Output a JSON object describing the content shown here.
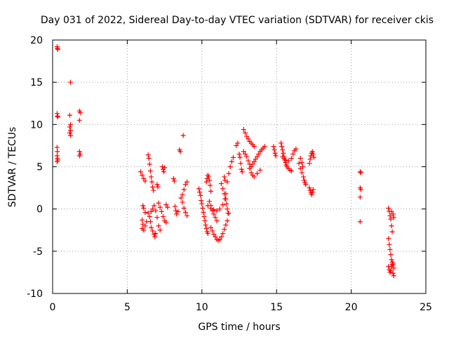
{
  "chart_data": {
    "type": "scatter",
    "title": "Day 031 of 2022, Sidereal Day-to-day VTEC variation (SDTVAR) for receiver ckis",
    "xlabel": "GPS time / hours",
    "ylabel": "SDTVAR / TECUs",
    "xlim": [
      0,
      25
    ],
    "ylim": [
      -10,
      20
    ],
    "xticks": [
      0,
      5,
      10,
      15,
      20,
      25
    ],
    "yticks": [
      -10,
      -5,
      0,
      5,
      10,
      15,
      20
    ],
    "xtick_labels": [
      "0",
      "5",
      "10",
      "15",
      "20",
      "25"
    ],
    "ytick_labels": [
      "-10",
      "-5",
      "0",
      "5",
      "10",
      "15",
      "20"
    ],
    "grid": true,
    "marker": "+",
    "color": "#ff0000",
    "series": [
      {
        "name": "SDTVAR",
        "points": [
          [
            0.3,
            19.2
          ],
          [
            0.32,
            19.0
          ],
          [
            0.35,
            18.9
          ],
          [
            0.3,
            11.3
          ],
          [
            0.32,
            11.0
          ],
          [
            0.35,
            10.9
          ],
          [
            0.3,
            7.3
          ],
          [
            0.32,
            6.8
          ],
          [
            0.3,
            6.3
          ],
          [
            0.32,
            6.0
          ],
          [
            0.35,
            5.8
          ],
          [
            0.3,
            5.6
          ],
          [
            1.2,
            15.0
          ],
          [
            1.15,
            11.1
          ],
          [
            1.2,
            10.0
          ],
          [
            1.15,
            9.7
          ],
          [
            1.2,
            9.3
          ],
          [
            1.15,
            9.0
          ],
          [
            1.2,
            8.7
          ],
          [
            1.8,
            11.6
          ],
          [
            1.85,
            11.4
          ],
          [
            1.8,
            10.5
          ],
          [
            1.8,
            6.8
          ],
          [
            1.85,
            6.5
          ],
          [
            1.8,
            6.3
          ],
          [
            5.9,
            4.4
          ],
          [
            6.0,
            4.0
          ],
          [
            6.1,
            3.6
          ],
          [
            6.2,
            3.3
          ],
          [
            6.05,
            0.4
          ],
          [
            6.1,
            0.1
          ],
          [
            6.2,
            -0.4
          ],
          [
            6.0,
            -1.3
          ],
          [
            6.05,
            -1.8
          ],
          [
            6.0,
            -2.3
          ],
          [
            6.1,
            -2.5
          ],
          [
            6.2,
            -2.0
          ],
          [
            6.3,
            -1.5
          ],
          [
            6.4,
            6.4
          ],
          [
            6.45,
            6.0
          ],
          [
            6.5,
            5.3
          ],
          [
            6.55,
            4.5
          ],
          [
            6.6,
            3.8
          ],
          [
            6.65,
            3.2
          ],
          [
            6.7,
            2.6
          ],
          [
            6.75,
            2.2
          ],
          [
            6.4,
            -0.5
          ],
          [
            6.5,
            -0.9
          ],
          [
            6.55,
            -1.5
          ],
          [
            6.6,
            -2.2
          ],
          [
            6.7,
            -2.6
          ],
          [
            6.8,
            -3.0
          ],
          [
            6.85,
            -3.3
          ],
          [
            6.9,
            -2.9
          ],
          [
            6.6,
            -0.3
          ],
          [
            6.7,
            0.0
          ],
          [
            6.8,
            0.4
          ],
          [
            6.9,
            -0.2
          ],
          [
            7.0,
            -1.0
          ],
          [
            7.1,
            -2.0
          ],
          [
            7.2,
            -2.5
          ],
          [
            7.0,
            2.9
          ],
          [
            7.05,
            2.6
          ],
          [
            7.1,
            0.7
          ],
          [
            7.2,
            0.2
          ],
          [
            7.3,
            -0.3
          ],
          [
            7.4,
            -0.9
          ],
          [
            7.5,
            -1.4
          ],
          [
            7.6,
            -1.6
          ],
          [
            7.35,
            5.0
          ],
          [
            7.4,
            4.7
          ],
          [
            7.45,
            4.4
          ],
          [
            7.5,
            4.9
          ],
          [
            7.6,
            0.5
          ],
          [
            7.7,
            0.2
          ],
          [
            8.1,
            3.6
          ],
          [
            8.15,
            3.3
          ],
          [
            8.2,
            0.3
          ],
          [
            8.25,
            -0.2
          ],
          [
            8.3,
            -0.6
          ],
          [
            8.4,
            -0.3
          ],
          [
            8.5,
            7.0
          ],
          [
            8.55,
            6.8
          ],
          [
            8.75,
            8.7
          ],
          [
            8.6,
            1.3
          ],
          [
            8.7,
            1.7
          ],
          [
            8.8,
            2.3
          ],
          [
            8.9,
            2.9
          ],
          [
            9.0,
            3.2
          ],
          [
            8.7,
            0.8
          ],
          [
            8.8,
            0.1
          ],
          [
            8.9,
            -0.4
          ],
          [
            9.0,
            -0.8
          ],
          [
            9.8,
            2.4
          ],
          [
            9.85,
            2.0
          ],
          [
            9.9,
            1.6
          ],
          [
            9.95,
            1.0
          ],
          [
            10.0,
            0.6
          ],
          [
            10.05,
            0.1
          ],
          [
            10.1,
            -0.4
          ],
          [
            10.15,
            -0.9
          ],
          [
            10.2,
            -1.4
          ],
          [
            10.25,
            -1.9
          ],
          [
            10.3,
            -2.3
          ],
          [
            10.35,
            -2.7
          ],
          [
            10.4,
            -2.9
          ],
          [
            10.3,
            3.2
          ],
          [
            10.35,
            3.6
          ],
          [
            10.4,
            4.0
          ],
          [
            10.45,
            3.8
          ],
          [
            10.5,
            3.4
          ],
          [
            10.55,
            2.8
          ],
          [
            10.6,
            2.1
          ],
          [
            10.5,
            0.9
          ],
          [
            10.6,
            0.4
          ],
          [
            10.7,
            -0.2
          ],
          [
            10.8,
            -0.6
          ],
          [
            10.9,
            -1.0
          ],
          [
            11.0,
            -1.4
          ],
          [
            10.6,
            -2.2
          ],
          [
            10.7,
            -2.6
          ],
          [
            10.8,
            -3.0
          ],
          [
            10.9,
            -3.3
          ],
          [
            11.0,
            -3.6
          ],
          [
            11.1,
            -3.7
          ],
          [
            11.2,
            -3.6
          ],
          [
            11.3,
            -3.3
          ],
          [
            11.4,
            -2.9
          ],
          [
            11.5,
            -2.4
          ],
          [
            11.6,
            -1.9
          ],
          [
            11.7,
            -1.4
          ],
          [
            11.8,
            -0.5
          ],
          [
            10.4,
            0.4
          ],
          [
            10.6,
            0.1
          ],
          [
            10.8,
            -0.1
          ],
          [
            11.0,
            -0.2
          ],
          [
            11.2,
            0.0
          ],
          [
            11.4,
            0.5
          ],
          [
            11.55,
            1.2
          ],
          [
            11.6,
            1.8
          ],
          [
            11.3,
            3.0
          ],
          [
            11.4,
            2.4
          ],
          [
            11.5,
            1.8
          ],
          [
            11.6,
            1.2
          ],
          [
            11.65,
            0.6
          ],
          [
            11.7,
            0.0
          ],
          [
            11.75,
            -0.5
          ],
          [
            11.5,
            3.8
          ],
          [
            11.55,
            3.4
          ],
          [
            11.7,
            3.2
          ],
          [
            11.8,
            4.2
          ],
          [
            11.9,
            5.0
          ],
          [
            12.0,
            5.6
          ],
          [
            12.1,
            6.1
          ],
          [
            12.3,
            7.5
          ],
          [
            12.4,
            7.8
          ],
          [
            12.5,
            6.5
          ],
          [
            12.55,
            6.1
          ],
          [
            12.6,
            5.4
          ],
          [
            12.65,
            4.7
          ],
          [
            12.7,
            4.4
          ],
          [
            12.8,
            9.4
          ],
          [
            12.9,
            9.0
          ],
          [
            13.0,
            8.6
          ],
          [
            13.1,
            8.3
          ],
          [
            13.2,
            8.0
          ],
          [
            13.3,
            7.8
          ],
          [
            13.4,
            7.6
          ],
          [
            13.5,
            7.4
          ],
          [
            12.8,
            6.8
          ],
          [
            12.9,
            6.5
          ],
          [
            13.0,
            6.2
          ],
          [
            13.1,
            5.7
          ],
          [
            13.2,
            5.3
          ],
          [
            13.3,
            5.0
          ],
          [
            13.4,
            5.3
          ],
          [
            13.5,
            5.6
          ],
          [
            13.6,
            5.9
          ],
          [
            13.7,
            6.2
          ],
          [
            13.8,
            6.5
          ],
          [
            13.9,
            6.8
          ],
          [
            14.0,
            7.0
          ],
          [
            14.1,
            7.2
          ],
          [
            14.2,
            7.4
          ],
          [
            13.2,
            4.8
          ],
          [
            13.3,
            4.3
          ],
          [
            13.4,
            4.0
          ],
          [
            13.5,
            3.8
          ],
          [
            13.7,
            4.2
          ],
          [
            13.9,
            4.6
          ],
          [
            14.8,
            7.4
          ],
          [
            14.85,
            7.0
          ],
          [
            14.9,
            6.6
          ],
          [
            14.95,
            6.3
          ],
          [
            15.3,
            7.8
          ],
          [
            15.35,
            7.4
          ],
          [
            15.4,
            7.0
          ],
          [
            15.45,
            6.6
          ],
          [
            15.5,
            6.2
          ],
          [
            15.55,
            5.8
          ],
          [
            15.6,
            5.5
          ],
          [
            15.65,
            5.2
          ],
          [
            15.7,
            5.0
          ],
          [
            15.8,
            4.8
          ],
          [
            15.9,
            4.6
          ],
          [
            16.0,
            4.5
          ],
          [
            15.4,
            6.2
          ],
          [
            15.5,
            6.0
          ],
          [
            15.6,
            5.8
          ],
          [
            15.8,
            5.7
          ],
          [
            16.0,
            6.0
          ],
          [
            16.1,
            6.5
          ],
          [
            16.2,
            6.9
          ],
          [
            16.3,
            7.1
          ],
          [
            16.5,
            5.4
          ],
          [
            16.6,
            4.8
          ],
          [
            16.7,
            4.3
          ],
          [
            16.8,
            3.8
          ],
          [
            16.85,
            3.4
          ],
          [
            16.9,
            3.1
          ],
          [
            16.95,
            2.9
          ],
          [
            16.6,
            6.0
          ],
          [
            16.7,
            5.5
          ],
          [
            16.75,
            5.0
          ],
          [
            17.2,
            5.4
          ],
          [
            17.25,
            5.9
          ],
          [
            17.3,
            6.3
          ],
          [
            17.35,
            6.6
          ],
          [
            17.4,
            6.8
          ],
          [
            17.45,
            6.5
          ],
          [
            17.5,
            6.1
          ],
          [
            17.2,
            2.5
          ],
          [
            17.25,
            2.2
          ],
          [
            17.3,
            1.9
          ],
          [
            17.35,
            1.7
          ],
          [
            17.4,
            2.0
          ],
          [
            17.45,
            2.3
          ],
          [
            20.6,
            4.4
          ],
          [
            20.65,
            4.3
          ],
          [
            20.6,
            2.5
          ],
          [
            20.65,
            2.3
          ],
          [
            20.6,
            1.4
          ],
          [
            20.6,
            -1.5
          ],
          [
            22.5,
            0.1
          ],
          [
            22.55,
            -0.3
          ],
          [
            22.6,
            -0.8
          ],
          [
            22.65,
            -1.2
          ],
          [
            22.7,
            -2.0
          ],
          [
            22.75,
            -2.7
          ],
          [
            22.5,
            -3.5
          ],
          [
            22.55,
            -4.2
          ],
          [
            22.6,
            -4.8
          ],
          [
            22.65,
            -5.4
          ],
          [
            22.7,
            -6.0
          ],
          [
            22.75,
            -6.6
          ],
          [
            22.5,
            -6.8
          ],
          [
            22.55,
            -7.2
          ],
          [
            22.6,
            -7.5
          ],
          [
            22.65,
            -7.3
          ],
          [
            22.7,
            -6.8
          ],
          [
            22.75,
            -6.3
          ],
          [
            22.8,
            -6.5
          ],
          [
            22.85,
            -7.0
          ],
          [
            22.8,
            -7.6
          ],
          [
            22.85,
            -7.9
          ],
          [
            22.7,
            -0.3
          ],
          [
            22.8,
            -0.6
          ],
          [
            22.85,
            -1.0
          ]
        ]
      }
    ]
  }
}
